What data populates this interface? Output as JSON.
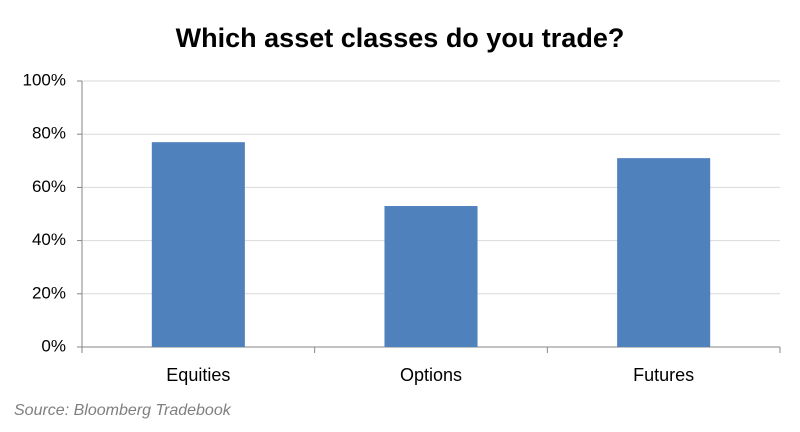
{
  "chart_data": {
    "type": "bar",
    "title": "Which asset classes do you trade?",
    "categories": [
      "Equities",
      "Options",
      "Futures"
    ],
    "values": [
      77,
      53,
      71
    ],
    "color": "#4f81bd",
    "ylim": [
      0,
      100
    ],
    "yticks": [
      {
        "value": 0,
        "label": "0%"
      },
      {
        "value": 20,
        "label": "20%"
      },
      {
        "value": 40,
        "label": "40%"
      },
      {
        "value": 60,
        "label": "60%"
      },
      {
        "value": 80,
        "label": "80%"
      },
      {
        "value": 100,
        "label": "100%"
      }
    ],
    "grid": true,
    "source": "Source: Bloomberg Tradebook"
  }
}
